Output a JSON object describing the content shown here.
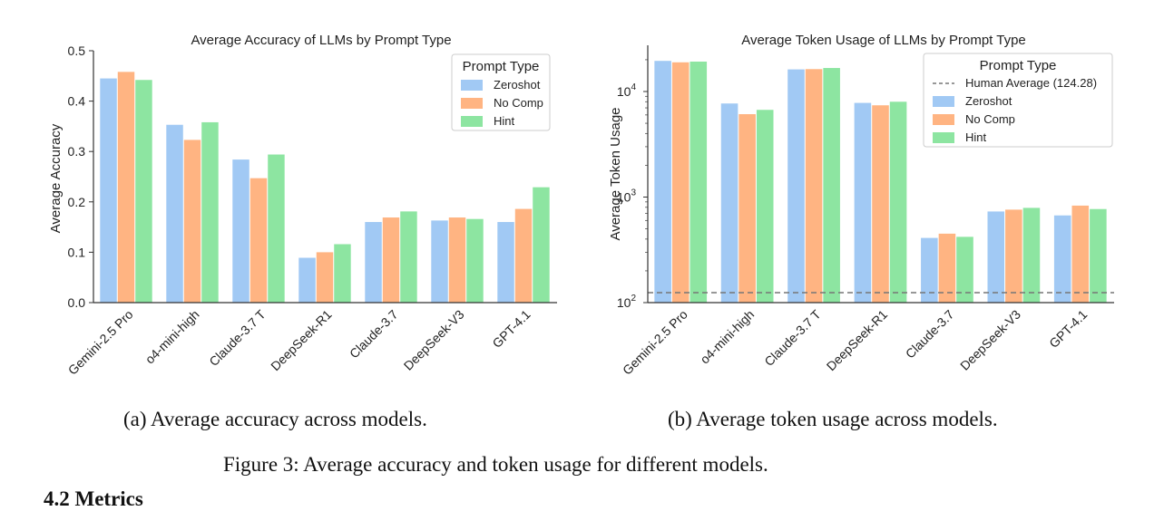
{
  "chart_data": [
    {
      "type": "bar",
      "title": "Average Accuracy of LLMs by Prompt Type",
      "xlabel": "",
      "ylabel": "Average Accuracy",
      "ylim": [
        0,
        0.5
      ],
      "yticks": [
        "0.0",
        "0.1",
        "0.2",
        "0.3",
        "0.4",
        "0.5"
      ],
      "yscale": "linear",
      "categories": [
        "Gemini-2.5 Pro",
        "o4-mini-high",
        "Claude-3.7 T",
        "DeepSeek-R1",
        "Claude-3.7",
        "DeepSeek-V3",
        "GPT-4.1"
      ],
      "legend": {
        "title": "Prompt Type",
        "position": "top-right"
      },
      "series": [
        {
          "name": "Zeroshot",
          "color": "#a1c9f4",
          "values": [
            0.445,
            0.353,
            0.284,
            0.089,
            0.16,
            0.163,
            0.16
          ]
        },
        {
          "name": "No Comp",
          "color": "#ffb482",
          "values": [
            0.458,
            0.323,
            0.247,
            0.1,
            0.169,
            0.169,
            0.186
          ]
        },
        {
          "name": "Hint",
          "color": "#8de5a1",
          "values": [
            0.442,
            0.358,
            0.294,
            0.116,
            0.181,
            0.166,
            0.229
          ]
        }
      ],
      "caption": "(a) Average accuracy across models."
    },
    {
      "type": "bar",
      "title": "Average Token Usage of LLMs by Prompt Type",
      "xlabel": "",
      "ylabel": "Average Token Usage",
      "yscale": "log",
      "ylim": [
        100,
        25000
      ],
      "yticks": [
        {
          "base": "10",
          "exp": "2",
          "value": 100
        },
        {
          "base": "10",
          "exp": "3",
          "value": 1000
        },
        {
          "base": "10",
          "exp": "4",
          "value": 10000
        }
      ],
      "categories": [
        "Gemini-2.5 Pro",
        "o4-mini-high",
        "Claude-3.7 T",
        "DeepSeek-R1",
        "Claude-3.7",
        "DeepSeek-V3",
        "GPT-4.1"
      ],
      "legend": {
        "title": "Prompt Type",
        "position": "top-right"
      },
      "reference_line": {
        "name": "Human Average (124.28)",
        "value": 124.28,
        "style": "dashed",
        "color": "#777777"
      },
      "series": [
        {
          "name": "Zeroshot",
          "color": "#a1c9f4",
          "values": [
            19500,
            7700,
            16200,
            7800,
            410,
            730,
            670
          ]
        },
        {
          "name": "No Comp",
          "color": "#ffb482",
          "values": [
            18900,
            6100,
            16300,
            7400,
            450,
            760,
            830
          ]
        },
        {
          "name": "Hint",
          "color": "#8de5a1",
          "values": [
            19200,
            6700,
            16700,
            8000,
            420,
            790,
            770
          ]
        }
      ],
      "caption": "(b) Average token usage across models."
    }
  ],
  "figure_caption": "Figure 3: Average accuracy and token usage for different models.",
  "section_heading": "4.2   Metrics"
}
